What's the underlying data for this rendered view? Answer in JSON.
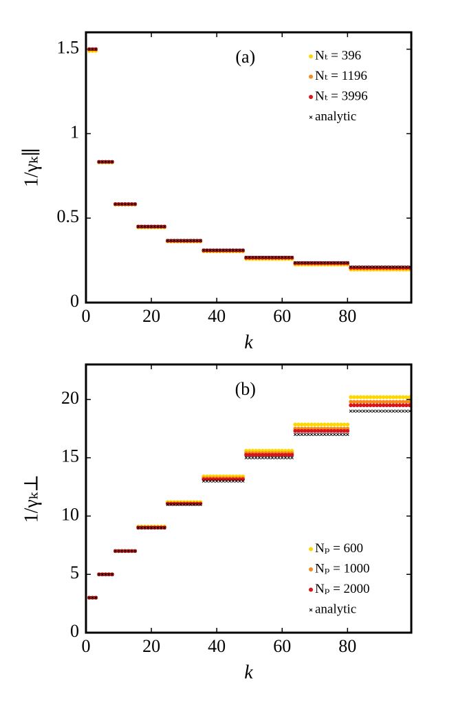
{
  "chart_data": [
    {
      "type": "scatter",
      "annotation": "(a)",
      "x_label": "k",
      "y_label": "1/γₖ∥",
      "xlim": [
        0,
        99.5
      ],
      "xticks": [
        0,
        20,
        40,
        60,
        80
      ],
      "ylim": [
        0,
        1.6
      ],
      "yticks": [
        0,
        0.5,
        1,
        1.5
      ],
      "legend": "upper right",
      "x": [
        1,
        2,
        3,
        4,
        5,
        6,
        7,
        8,
        9,
        10,
        11,
        12,
        13,
        14,
        15,
        16,
        17,
        18,
        19,
        20,
        21,
        22,
        23,
        24,
        25,
        26,
        27,
        28,
        29,
        30,
        31,
        32,
        33,
        34,
        35,
        36,
        37,
        38,
        39,
        40,
        41,
        42,
        43,
        44,
        45,
        46,
        47,
        48,
        49,
        50,
        51,
        52,
        53,
        54,
        55,
        56,
        57,
        58,
        59,
        60,
        61,
        62,
        63,
        64,
        65,
        66,
        67,
        68,
        69,
        70,
        71,
        72,
        73,
        74,
        75,
        76,
        77,
        78,
        79,
        80,
        81,
        82,
        83,
        84,
        85,
        86,
        87,
        88,
        89,
        90,
        91,
        92,
        93,
        94,
        95,
        96,
        97,
        98,
        99
      ],
      "series": [
        {
          "name": "Nₜ = 396",
          "color": "#ffd700",
          "marker": "o",
          "values": [
            1.49,
            1.49,
            1.49,
            0.83,
            0.83,
            0.83,
            0.83,
            0.83,
            0.58,
            0.58,
            0.58,
            0.58,
            0.58,
            0.58,
            0.58,
            0.445,
            0.445,
            0.445,
            0.445,
            0.445,
            0.445,
            0.445,
            0.445,
            0.445,
            0.362,
            0.362,
            0.362,
            0.362,
            0.362,
            0.362,
            0.362,
            0.362,
            0.362,
            0.362,
            0.362,
            0.303,
            0.303,
            0.303,
            0.303,
            0.303,
            0.303,
            0.303,
            0.303,
            0.303,
            0.303,
            0.303,
            0.303,
            0.303,
            0.258,
            0.258,
            0.258,
            0.258,
            0.258,
            0.258,
            0.258,
            0.258,
            0.258,
            0.258,
            0.258,
            0.258,
            0.258,
            0.258,
            0.258,
            0.225,
            0.225,
            0.225,
            0.225,
            0.225,
            0.225,
            0.225,
            0.225,
            0.225,
            0.225,
            0.225,
            0.225,
            0.225,
            0.225,
            0.225,
            0.225,
            0.225,
            0.195,
            0.195,
            0.195,
            0.195,
            0.195,
            0.195,
            0.195,
            0.195,
            0.195,
            0.195,
            0.195,
            0.195,
            0.195,
            0.195,
            0.195,
            0.195,
            0.195,
            0.195,
            0.195
          ]
        },
        {
          "name": "Nₜ = 1196",
          "color": "#f28a1c",
          "marker": "o",
          "values": [
            1.5,
            1.5,
            1.5,
            0.833,
            0.833,
            0.833,
            0.833,
            0.833,
            0.583,
            0.583,
            0.583,
            0.583,
            0.583,
            0.583,
            0.583,
            0.449,
            0.449,
            0.449,
            0.449,
            0.449,
            0.449,
            0.449,
            0.449,
            0.449,
            0.365,
            0.365,
            0.365,
            0.365,
            0.365,
            0.365,
            0.365,
            0.365,
            0.365,
            0.365,
            0.365,
            0.307,
            0.307,
            0.307,
            0.307,
            0.307,
            0.307,
            0.307,
            0.307,
            0.307,
            0.307,
            0.307,
            0.307,
            0.307,
            0.264,
            0.264,
            0.264,
            0.264,
            0.264,
            0.264,
            0.264,
            0.264,
            0.264,
            0.264,
            0.264,
            0.264,
            0.264,
            0.264,
            0.264,
            0.231,
            0.231,
            0.231,
            0.231,
            0.231,
            0.231,
            0.231,
            0.231,
            0.231,
            0.231,
            0.231,
            0.231,
            0.231,
            0.231,
            0.231,
            0.231,
            0.231,
            0.203,
            0.203,
            0.203,
            0.203,
            0.203,
            0.203,
            0.203,
            0.203,
            0.203,
            0.203,
            0.203,
            0.203,
            0.203,
            0.203,
            0.203,
            0.203,
            0.203,
            0.203,
            0.203
          ]
        },
        {
          "name": "Nₜ = 3996",
          "color": "#d8141c",
          "marker": "o",
          "values": [
            1.5,
            1.5,
            1.5,
            0.833,
            0.833,
            0.833,
            0.833,
            0.833,
            0.583,
            0.583,
            0.583,
            0.583,
            0.583,
            0.583,
            0.583,
            0.45,
            0.45,
            0.45,
            0.45,
            0.45,
            0.45,
            0.45,
            0.45,
            0.45,
            0.366,
            0.366,
            0.366,
            0.366,
            0.366,
            0.366,
            0.366,
            0.366,
            0.366,
            0.366,
            0.366,
            0.309,
            0.309,
            0.309,
            0.309,
            0.309,
            0.309,
            0.309,
            0.309,
            0.309,
            0.309,
            0.309,
            0.309,
            0.309,
            0.266,
            0.266,
            0.266,
            0.266,
            0.266,
            0.266,
            0.266,
            0.266,
            0.266,
            0.266,
            0.266,
            0.266,
            0.266,
            0.266,
            0.266,
            0.234,
            0.234,
            0.234,
            0.234,
            0.234,
            0.234,
            0.234,
            0.234,
            0.234,
            0.234,
            0.234,
            0.234,
            0.234,
            0.234,
            0.234,
            0.234,
            0.234,
            0.207,
            0.207,
            0.207,
            0.207,
            0.207,
            0.207,
            0.207,
            0.207,
            0.207,
            0.207,
            0.207,
            0.207,
            0.207,
            0.207,
            0.207,
            0.207,
            0.207,
            0.207,
            0.207
          ]
        },
        {
          "name": "analytic",
          "color": "#000000",
          "marker": "x",
          "values": [
            1.5,
            1.5,
            1.5,
            0.833,
            0.833,
            0.833,
            0.833,
            0.833,
            0.583,
            0.583,
            0.583,
            0.583,
            0.583,
            0.583,
            0.583,
            0.45,
            0.45,
            0.45,
            0.45,
            0.45,
            0.45,
            0.45,
            0.45,
            0.45,
            0.367,
            0.367,
            0.367,
            0.367,
            0.367,
            0.367,
            0.367,
            0.367,
            0.367,
            0.367,
            0.367,
            0.31,
            0.31,
            0.31,
            0.31,
            0.31,
            0.31,
            0.31,
            0.31,
            0.31,
            0.31,
            0.31,
            0.31,
            0.31,
            0.268,
            0.268,
            0.268,
            0.268,
            0.268,
            0.268,
            0.268,
            0.268,
            0.268,
            0.268,
            0.268,
            0.268,
            0.268,
            0.268,
            0.268,
            0.236,
            0.236,
            0.236,
            0.236,
            0.236,
            0.236,
            0.236,
            0.236,
            0.236,
            0.236,
            0.236,
            0.236,
            0.236,
            0.236,
            0.236,
            0.236,
            0.236,
            0.211,
            0.211,
            0.211,
            0.211,
            0.211,
            0.211,
            0.211,
            0.211,
            0.211,
            0.211,
            0.211,
            0.211,
            0.211,
            0.211,
            0.211,
            0.211,
            0.211,
            0.211,
            0.211
          ]
        }
      ]
    },
    {
      "type": "scatter",
      "annotation": "(b)",
      "x_label": "k",
      "y_label": "1/γₖ⊥",
      "xlim": [
        0,
        99.5
      ],
      "xticks": [
        0,
        20,
        40,
        60,
        80
      ],
      "ylim": [
        0,
        23
      ],
      "yticks": [
        0,
        5,
        10,
        15,
        20
      ],
      "legend": "lower right",
      "x": [
        1,
        2,
        3,
        4,
        5,
        6,
        7,
        8,
        9,
        10,
        11,
        12,
        13,
        14,
        15,
        16,
        17,
        18,
        19,
        20,
        21,
        22,
        23,
        24,
        25,
        26,
        27,
        28,
        29,
        30,
        31,
        32,
        33,
        34,
        35,
        36,
        37,
        38,
        39,
        40,
        41,
        42,
        43,
        44,
        45,
        46,
        47,
        48,
        49,
        50,
        51,
        52,
        53,
        54,
        55,
        56,
        57,
        58,
        59,
        60,
        61,
        62,
        63,
        64,
        65,
        66,
        67,
        68,
        69,
        70,
        71,
        72,
        73,
        74,
        75,
        76,
        77,
        78,
        79,
        80,
        81,
        82,
        83,
        84,
        85,
        86,
        87,
        88,
        89,
        90,
        91,
        92,
        93,
        94,
        95,
        96,
        97,
        98,
        99
      ],
      "series": [
        {
          "name": "Nₚ = 600",
          "color": "#ffd700",
          "marker": "o",
          "values": [
            3,
            3,
            3,
            5,
            5,
            5,
            5,
            5,
            7,
            7,
            7,
            7,
            7,
            7,
            7,
            9.1,
            9.1,
            9.1,
            9.1,
            9.1,
            9.1,
            9.1,
            9.1,
            9.1,
            11.2,
            11.2,
            11.2,
            11.2,
            11.2,
            11.2,
            11.2,
            11.2,
            11.2,
            11.2,
            11.2,
            13.4,
            13.4,
            13.4,
            13.4,
            13.4,
            13.4,
            13.4,
            13.4,
            13.4,
            13.4,
            13.4,
            13.4,
            13.4,
            15.6,
            15.6,
            15.6,
            15.6,
            15.6,
            15.6,
            15.6,
            15.6,
            15.6,
            15.6,
            15.6,
            15.6,
            15.6,
            15.6,
            15.6,
            17.85,
            17.85,
            17.85,
            17.85,
            17.85,
            17.85,
            17.85,
            17.85,
            17.85,
            17.85,
            17.85,
            17.85,
            17.85,
            17.85,
            17.85,
            17.85,
            17.85,
            20.2,
            20.2,
            20.2,
            20.2,
            20.2,
            20.2,
            20.2,
            20.2,
            20.2,
            20.2,
            20.2,
            20.2,
            20.2,
            20.2,
            20.2,
            20.2,
            20.2,
            20.2,
            20.2
          ]
        },
        {
          "name": "Nₚ = 1000",
          "color": "#f28a1c",
          "marker": "o",
          "values": [
            3,
            3,
            3,
            5,
            5,
            5,
            5,
            5,
            7,
            7,
            7,
            7,
            7,
            7,
            7,
            9.05,
            9.05,
            9.05,
            9.05,
            9.05,
            9.05,
            9.05,
            9.05,
            9.05,
            11.1,
            11.1,
            11.1,
            11.1,
            11.1,
            11.1,
            11.1,
            11.1,
            11.1,
            11.1,
            11.1,
            13.25,
            13.25,
            13.25,
            13.25,
            13.25,
            13.25,
            13.25,
            13.25,
            13.25,
            13.25,
            13.25,
            13.25,
            13.25,
            15.4,
            15.4,
            15.4,
            15.4,
            15.4,
            15.4,
            15.4,
            15.4,
            15.4,
            15.4,
            15.4,
            15.4,
            15.4,
            15.4,
            15.4,
            17.5,
            17.5,
            17.5,
            17.5,
            17.5,
            17.5,
            17.5,
            17.5,
            17.5,
            17.5,
            17.5,
            17.5,
            17.5,
            17.5,
            17.5,
            17.5,
            17.5,
            19.8,
            19.8,
            19.8,
            19.8,
            19.8,
            19.8,
            19.8,
            19.8,
            19.8,
            19.8,
            19.8,
            19.8,
            19.8,
            19.8,
            19.8,
            19.8,
            19.8,
            19.8,
            19.8
          ]
        },
        {
          "name": "Nₚ = 2000",
          "color": "#d8141c",
          "marker": "o",
          "values": [
            3,
            3,
            3,
            5,
            5,
            5,
            5,
            5,
            7,
            7,
            7,
            7,
            7,
            7,
            7,
            9,
            9,
            9,
            9,
            9,
            9,
            9,
            9,
            9,
            11.05,
            11.05,
            11.05,
            11.05,
            11.05,
            11.05,
            11.05,
            11.05,
            11.05,
            11.05,
            11.05,
            13.15,
            13.15,
            13.15,
            13.15,
            13.15,
            13.15,
            13.15,
            13.15,
            13.15,
            13.15,
            13.15,
            13.15,
            13.15,
            15.25,
            15.25,
            15.25,
            15.25,
            15.25,
            15.25,
            15.25,
            15.25,
            15.25,
            15.25,
            15.25,
            15.25,
            15.25,
            15.25,
            15.25,
            17.3,
            17.3,
            17.3,
            17.3,
            17.3,
            17.3,
            17.3,
            17.3,
            17.3,
            17.3,
            17.3,
            17.3,
            17.3,
            17.3,
            17.3,
            17.3,
            17.3,
            19.5,
            19.5,
            19.5,
            19.5,
            19.5,
            19.5,
            19.5,
            19.5,
            19.5,
            19.5,
            19.5,
            19.5,
            19.5,
            19.5,
            19.5,
            19.5,
            19.5,
            19.5,
            19.5
          ]
        },
        {
          "name": "analytic",
          "color": "#000000",
          "marker": "x",
          "values": [
            3,
            3,
            3,
            5,
            5,
            5,
            5,
            5,
            7,
            7,
            7,
            7,
            7,
            7,
            7,
            9,
            9,
            9,
            9,
            9,
            9,
            9,
            9,
            9,
            11,
            11,
            11,
            11,
            11,
            11,
            11,
            11,
            11,
            11,
            11,
            13,
            13,
            13,
            13,
            13,
            13,
            13,
            13,
            13,
            13,
            13,
            13,
            13,
            15,
            15,
            15,
            15,
            15,
            15,
            15,
            15,
            15,
            15,
            15,
            15,
            15,
            15,
            15,
            17,
            17,
            17,
            17,
            17,
            17,
            17,
            17,
            17,
            17,
            17,
            17,
            17,
            17,
            17,
            17,
            17,
            19,
            19,
            19,
            19,
            19,
            19,
            19,
            19,
            19,
            19,
            19,
            19,
            19,
            19,
            19,
            19,
            19,
            19,
            19
          ]
        }
      ]
    }
  ]
}
